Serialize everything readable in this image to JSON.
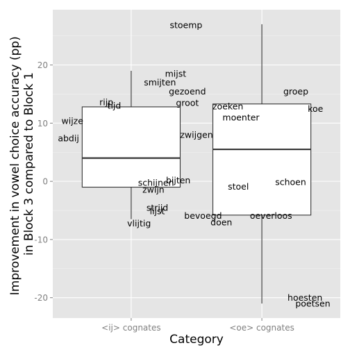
{
  "chart_data": {
    "type": "boxplot",
    "title": "",
    "xlabel": "Category",
    "ylabel": "Improvement in vowel choice accuracy (pp)\nin Block 3 compared to Block 1",
    "ylabel_lines": [
      "Improvement in vowel choice accuracy (pp)",
      "in Block 3 compared to Block 1"
    ],
    "ylim": [
      -23.5,
      29.5
    ],
    "yticks": [
      -20,
      -10,
      0,
      10,
      20
    ],
    "ytick_labels": [
      "-20",
      "-10",
      "0",
      "10",
      "20"
    ],
    "grid": true,
    "categories": [
      "<ij> cognates",
      "<oe> cognates"
    ],
    "boxes": [
      {
        "category": "<ij> cognates",
        "whisker_low": -6.5,
        "q1": -1.0,
        "median": 4.0,
        "q3": 12.8,
        "whisker_high": 19.0
      },
      {
        "category": "<oe> cognates",
        "whisker_low": -21.0,
        "q1": -5.8,
        "median": 5.5,
        "q3": 13.3,
        "whisker_high": 27.0
      }
    ],
    "labels": [
      {
        "category": "<ij> cognates",
        "text": "mijst",
        "x_offset": 0.34,
        "y": 18.5
      },
      {
        "category": "<ij> cognates",
        "text": "smijten",
        "x_offset": 0.22,
        "y": 17.0
      },
      {
        "category": "<ij> cognates",
        "text": "rijp",
        "x_offset": -0.19,
        "y": 13.6
      },
      {
        "category": "<ij> cognates",
        "text": "tijd",
        "x_offset": -0.13,
        "y": 13.0
      },
      {
        "category": "<ij> cognates",
        "text": "wijze",
        "x_offset": -0.45,
        "y": 10.4
      },
      {
        "category": "<ij> cognates",
        "text": "zwijgen",
        "x_offset": 0.5,
        "y": 8.0
      },
      {
        "category": "<ij> cognates",
        "text": "abdij",
        "x_offset": -0.48,
        "y": 7.4
      },
      {
        "category": "<ij> cognates",
        "text": "bijten",
        "x_offset": 0.36,
        "y": 0.2
      },
      {
        "category": "<ij> cognates",
        "text": "schijnen",
        "x_offset": 0.19,
        "y": -0.2
      },
      {
        "category": "<ij> cognates",
        "text": "zwijn",
        "x_offset": 0.17,
        "y": -1.4
      },
      {
        "category": "<ij> cognates",
        "text": "strijd",
        "x_offset": 0.2,
        "y": -4.5
      },
      {
        "category": "<ij> cognates",
        "text": "lijst",
        "x_offset": 0.2,
        "y": -5.1
      },
      {
        "category": "<ij> cognates",
        "text": "vlijtig",
        "x_offset": 0.06,
        "y": -7.2
      },
      {
        "category": "<oe> cognates",
        "text": "stoemp",
        "x_offset": -0.58,
        "y": 26.9
      },
      {
        "category": "<oe> cognates",
        "text": "gezoend",
        "x_offset": -0.57,
        "y": 15.5
      },
      {
        "category": "<oe> cognates",
        "text": "groep",
        "x_offset": 0.26,
        "y": 15.5
      },
      {
        "category": "<oe> cognates",
        "text": "groot",
        "x_offset": -0.57,
        "y": 13.5
      },
      {
        "category": "<oe> cognates",
        "text": "zoeken",
        "x_offset": -0.26,
        "y": 12.9
      },
      {
        "category": "<oe> cognates",
        "text": "koe",
        "x_offset": 0.41,
        "y": 12.5
      },
      {
        "category": "<oe> cognates",
        "text": "moenter",
        "x_offset": -0.16,
        "y": 11.0
      },
      {
        "category": "<oe> cognates",
        "text": "schoen",
        "x_offset": 0.22,
        "y": -0.1
      },
      {
        "category": "<oe> cognates",
        "text": "stoel",
        "x_offset": -0.18,
        "y": -0.9
      },
      {
        "category": "<oe> cognates",
        "text": "bevoegd",
        "x_offset": -0.45,
        "y": -5.9
      },
      {
        "category": "<oe> cognates",
        "text": "oeverloos",
        "x_offset": 0.07,
        "y": -5.9
      },
      {
        "category": "<oe> cognates",
        "text": "doen",
        "x_offset": -0.31,
        "y": -7.0
      },
      {
        "category": "<oe> cognates",
        "text": "hoesten",
        "x_offset": 0.33,
        "y": -20.0
      },
      {
        "category": "<oe> cognates",
        "text": "poetsen",
        "x_offset": 0.39,
        "y": -21.0
      }
    ]
  }
}
